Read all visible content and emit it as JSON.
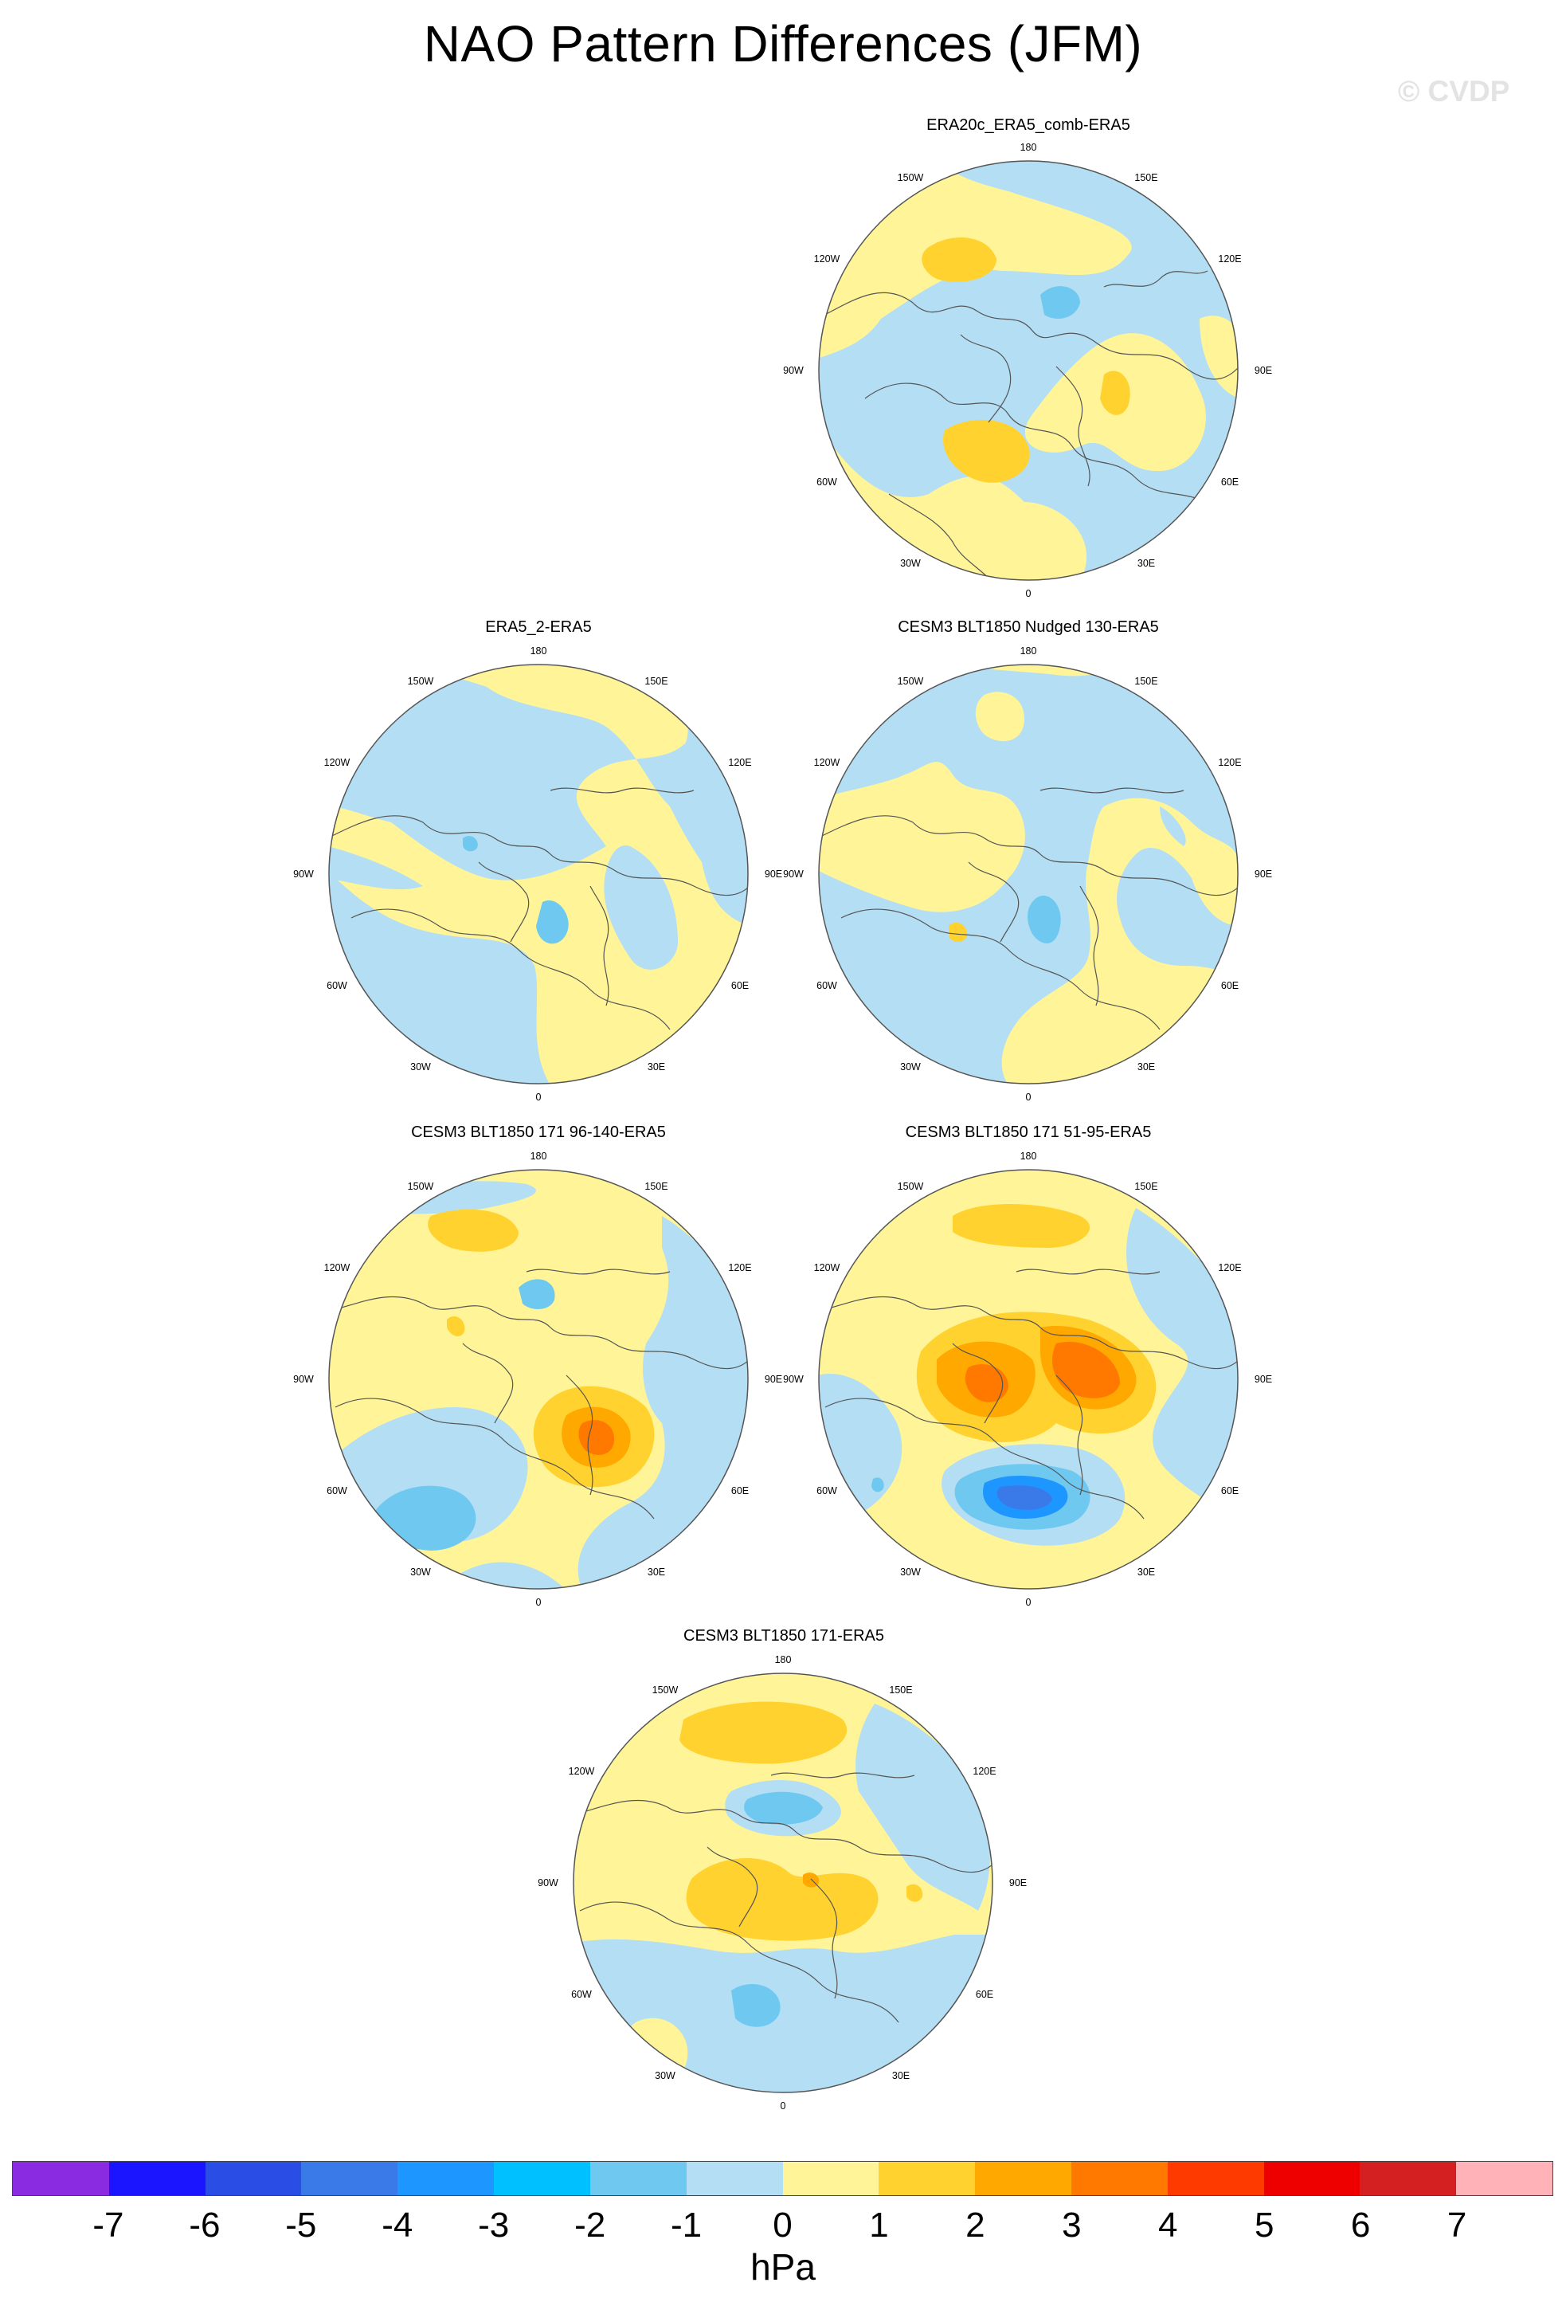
{
  "title": "NAO Pattern Differences (JFM)",
  "watermark": "© CVDP",
  "units": "hPa",
  "colorbar": {
    "labels": [
      "-7",
      "-6",
      "-5",
      "-4",
      "-3",
      "-2",
      "-1",
      "0",
      "1",
      "2",
      "3",
      "4",
      "5",
      "6",
      "7"
    ],
    "colors": [
      "#8a2be2",
      "#1a14ff",
      "#2a4de6",
      "#3a7ae8",
      "#1e96ff",
      "#00c0ff",
      "#6ec8f0",
      "#b4def3",
      "#fff598",
      "#ffd230",
      "#ffa800",
      "#ff7800",
      "#ff3a00",
      "#ee0000",
      "#d42020",
      "#ffb3b8"
    ]
  },
  "longitude_labels": {
    "top": "180",
    "bottom": "0",
    "left": "90W",
    "right": "90E",
    "upper_left": "150W",
    "upper_right": "150E",
    "mid_upper_left": "120W",
    "mid_upper_right": "120E",
    "mid_lower_left": "60W",
    "mid_lower_right": "60E",
    "lower_left": "30W",
    "lower_right": "30E"
  },
  "panels": [
    {
      "id": "p1",
      "title": "ERA20c_ERA5_comb-ERA5"
    },
    {
      "id": "p2",
      "title": "ERA5_2-ERA5"
    },
    {
      "id": "p3",
      "title": "CESM3 BLT1850 Nudged 130-ERA5"
    },
    {
      "id": "p4",
      "title": "CESM3 BLT1850 171 96-140-ERA5"
    },
    {
      "id": "p5",
      "title": "CESM3 BLT1850 171 51-95-ERA5"
    },
    {
      "id": "p6",
      "title": "CESM3 BLT1850 171-ERA5"
    }
  ]
}
